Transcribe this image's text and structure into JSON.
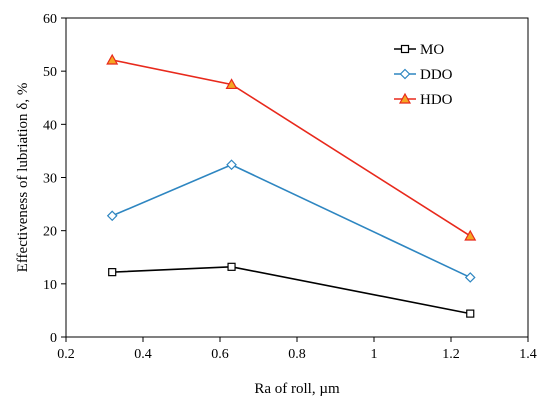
{
  "chart_data": {
    "type": "line",
    "xlabel": "Ra of roll, µm",
    "ylabel": "Effectiveness of lubriation δ, %",
    "xlim": [
      0.2,
      1.4
    ],
    "ylim": [
      0,
      60
    ],
    "x_ticks": [
      0.2,
      0.4,
      0.6,
      0.8,
      1,
      1.2,
      1.4
    ],
    "x_tick_labels": [
      "0.2",
      "0.4",
      "0.6",
      "0.8",
      "1",
      "1.2",
      "1.4"
    ],
    "y_ticks": [
      0,
      10,
      20,
      30,
      40,
      50,
      60
    ],
    "y_tick_labels": [
      "0",
      "10",
      "20",
      "30",
      "40",
      "50",
      "60"
    ],
    "grid": false,
    "legend_position": "top-right",
    "series": [
      {
        "name": "MO",
        "color": "#000000",
        "marker": "square",
        "marker_fill": "#ffffff",
        "x": [
          0.32,
          0.63,
          1.25
        ],
        "y": [
          12.2,
          13.2,
          4.4
        ]
      },
      {
        "name": "DDO",
        "color": "#2e86c1",
        "marker": "diamond",
        "marker_fill": "#ffffff",
        "x": [
          0.32,
          0.63,
          1.25
        ],
        "y": [
          22.8,
          32.4,
          11.2
        ]
      },
      {
        "name": "HDO",
        "color": "#e8291c",
        "marker": "triangle",
        "marker_fill": "#f5a623",
        "x": [
          0.32,
          0.63,
          1.25
        ],
        "y": [
          52.1,
          47.5,
          19.0
        ]
      }
    ]
  }
}
